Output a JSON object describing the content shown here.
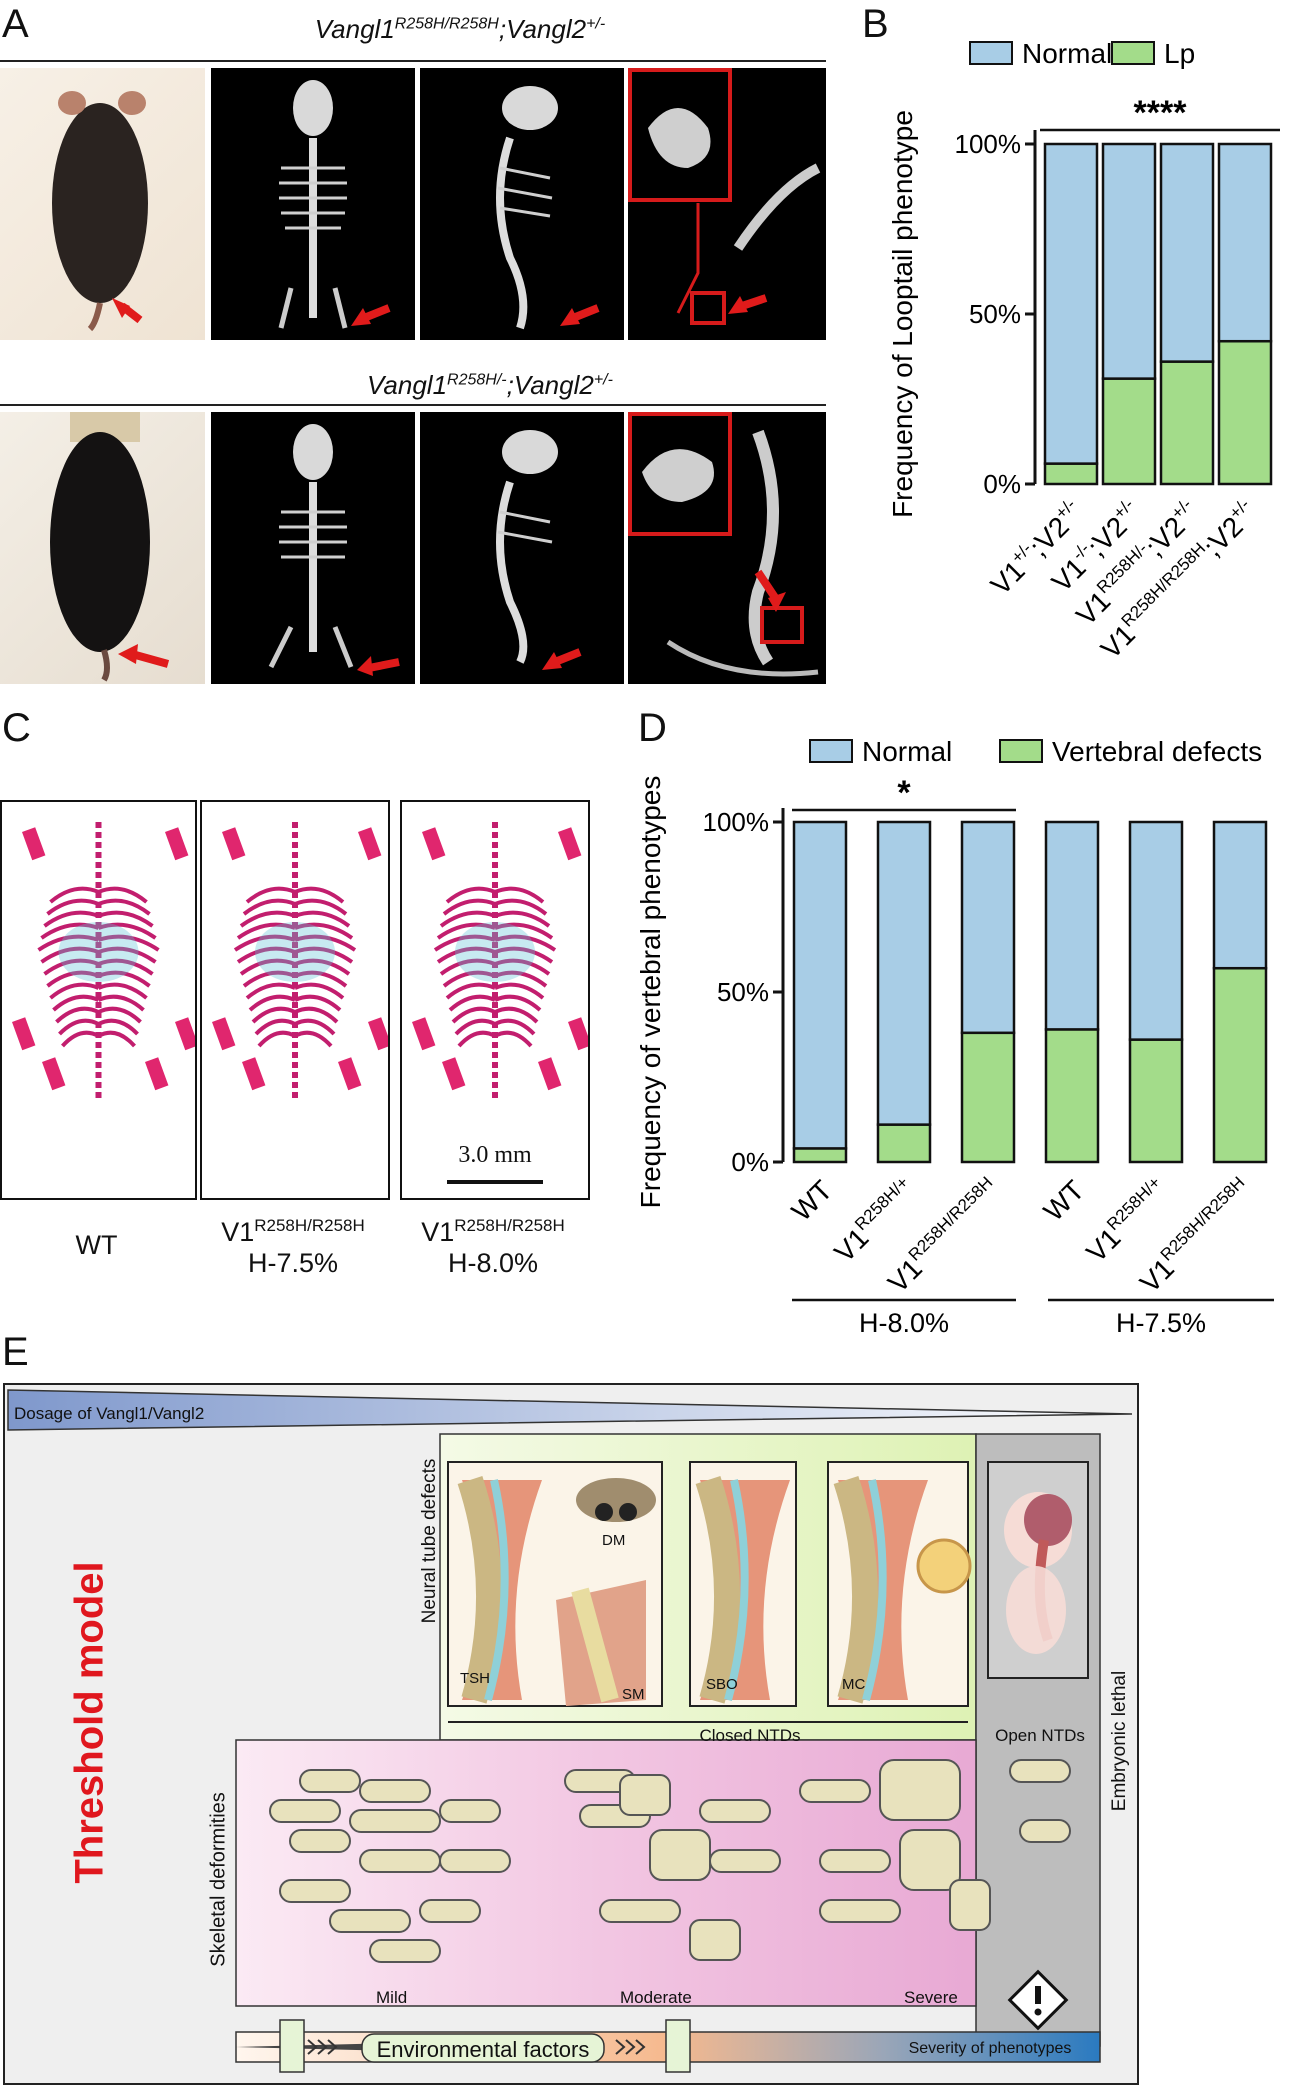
{
  "panels": {
    "a": "A",
    "b": "B",
    "c": "C",
    "d": "D",
    "e": "E"
  },
  "panelA": {
    "genotype1_main": "Vangl1",
    "genotype1_sup": "R258H/R258H",
    "genotype1_mid": ";Vangl2",
    "genotype1_sup2": "+/-",
    "genotype2_main": "Vangl1",
    "genotype2_sup": "R258H/-",
    "genotype2_mid": ";Vangl2",
    "genotype2_sup2": "+/-"
  },
  "panelC": {
    "labels": [
      "WT",
      "V1",
      "V1"
    ],
    "sups": [
      "",
      "R258H/R258H",
      "R258H/R258H"
    ],
    "sublabels": [
      "",
      "H-7.5%",
      "H-8.0%"
    ],
    "scale": "3.0 mm"
  },
  "panelE": {
    "dosage": "Dosage of Vangl1/Vangl2",
    "title": "Threshold model",
    "ntd_label": "Neural tube defects",
    "skeletal_label": "Skeletal deformities",
    "lethal_label": "Embryonic lethal",
    "closed": "Closed NTDs",
    "open": "Open NTDs",
    "tags": [
      "TSH",
      "DM",
      "SM",
      "SBO",
      "MC"
    ],
    "severity_levels": [
      "Mild",
      "Moderate",
      "Severe"
    ],
    "environment": "Environmental factors",
    "severity": "Severity of phenotypes"
  },
  "chart_data": [
    {
      "type": "bar",
      "stacked": true,
      "ylabel": "Frequency of Looptail phenotype",
      "yticks": [
        "0%",
        "50%",
        "100%"
      ],
      "ylim": [
        0,
        100
      ],
      "legend": [
        "Normal",
        "Lp"
      ],
      "legend_position": "top",
      "colors": {
        "Normal": "#a8cde6",
        "Lp": "#a3dc8a"
      },
      "categories": [
        {
          "base": "V1",
          "sup": "+/-",
          "tail": ";V2",
          "sup2": "+/-"
        },
        {
          "base": "V1",
          "sup": "-/-",
          "tail": ";V2",
          "sup2": "+/-"
        },
        {
          "base": "V1",
          "sup": "R258H/-",
          "tail": ";V2",
          "sup2": "+/-"
        },
        {
          "base": "V1",
          "sup": "R258H/R258H",
          "tail": ";V2",
          "sup2": "+/-"
        }
      ],
      "series": [
        {
          "name": "Lp",
          "values": [
            6,
            31,
            36,
            42
          ]
        },
        {
          "name": "Normal",
          "values": [
            94,
            69,
            64,
            58
          ]
        }
      ],
      "significance": "****"
    },
    {
      "type": "bar",
      "stacked": true,
      "ylabel": "Frequency of vertebral phenotypes",
      "yticks": [
        "0%",
        "50%",
        "100%"
      ],
      "ylim": [
        0,
        100
      ],
      "legend": [
        "Normal",
        "Vertebral defects"
      ],
      "legend_position": "top",
      "colors": {
        "Normal": "#a8cde6",
        "Vertebral defects": "#a3dc8a"
      },
      "categories": [
        {
          "base": "WT",
          "sup": ""
        },
        {
          "base": "V1",
          "sup": "R258H/+"
        },
        {
          "base": "V1",
          "sup": "R258H/R258H"
        },
        {
          "base": "WT",
          "sup": ""
        },
        {
          "base": "V1",
          "sup": "R258H/+"
        },
        {
          "base": "V1",
          "sup": "R258H/R258H"
        }
      ],
      "groups": [
        "H-8.0%",
        "H-7.5%"
      ],
      "series": [
        {
          "name": "Vertebral defects",
          "values": [
            4,
            11,
            38,
            39,
            36,
            57
          ]
        },
        {
          "name": "Normal",
          "values": [
            96,
            89,
            62,
            61,
            64,
            43
          ]
        }
      ],
      "significance": "*"
    }
  ]
}
